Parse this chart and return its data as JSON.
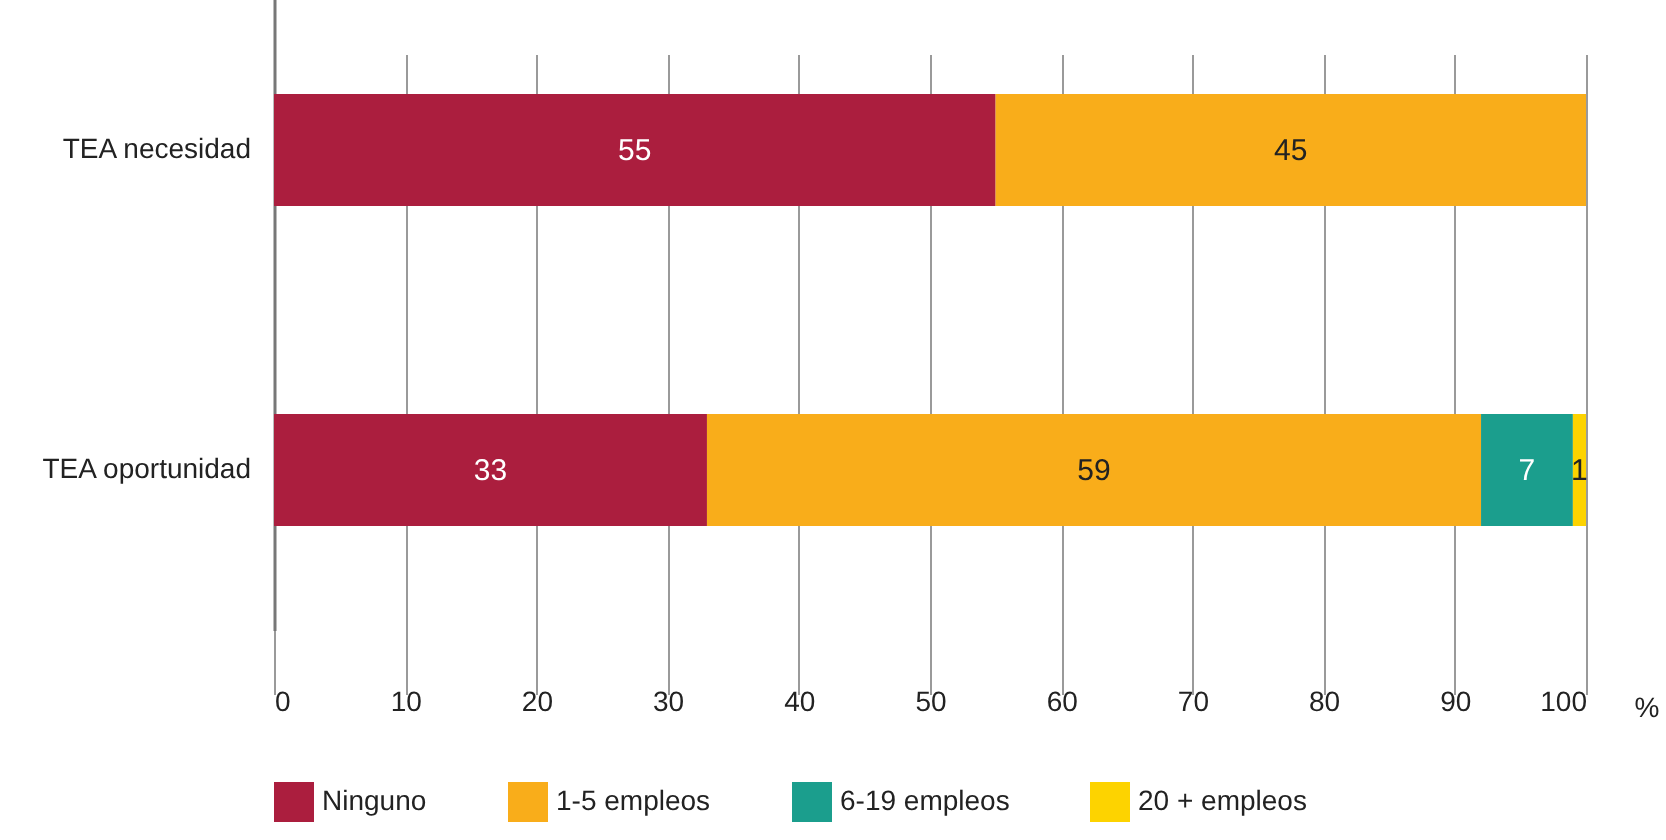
{
  "chart_data": {
    "type": "bar",
    "orientation": "horizontal",
    "stacked": true,
    "xlabel": "%",
    "categories": [
      "TEA necesidad",
      "TEA oportunidad"
    ],
    "series": [
      {
        "name": "Ninguno",
        "color": "#ab1e3e",
        "values": [
          55,
          33
        ]
      },
      {
        "name": "1-5 empleos",
        "color": "#f9ad1a",
        "values": [
          45,
          59
        ]
      },
      {
        "name": "6-19 empleos",
        "color": "#1b9e8d",
        "values": [
          null,
          7
        ]
      },
      {
        "name": "20 + empleos",
        "color": "#fdd300",
        "values": [
          null,
          1
        ]
      }
    ],
    "xlim": [
      0,
      100
    ],
    "xticks": [
      0,
      10,
      20,
      30,
      40,
      50,
      60,
      70,
      80,
      90,
      100
    ],
    "grid": "x",
    "legend": "bottom",
    "data_labels": true
  }
}
